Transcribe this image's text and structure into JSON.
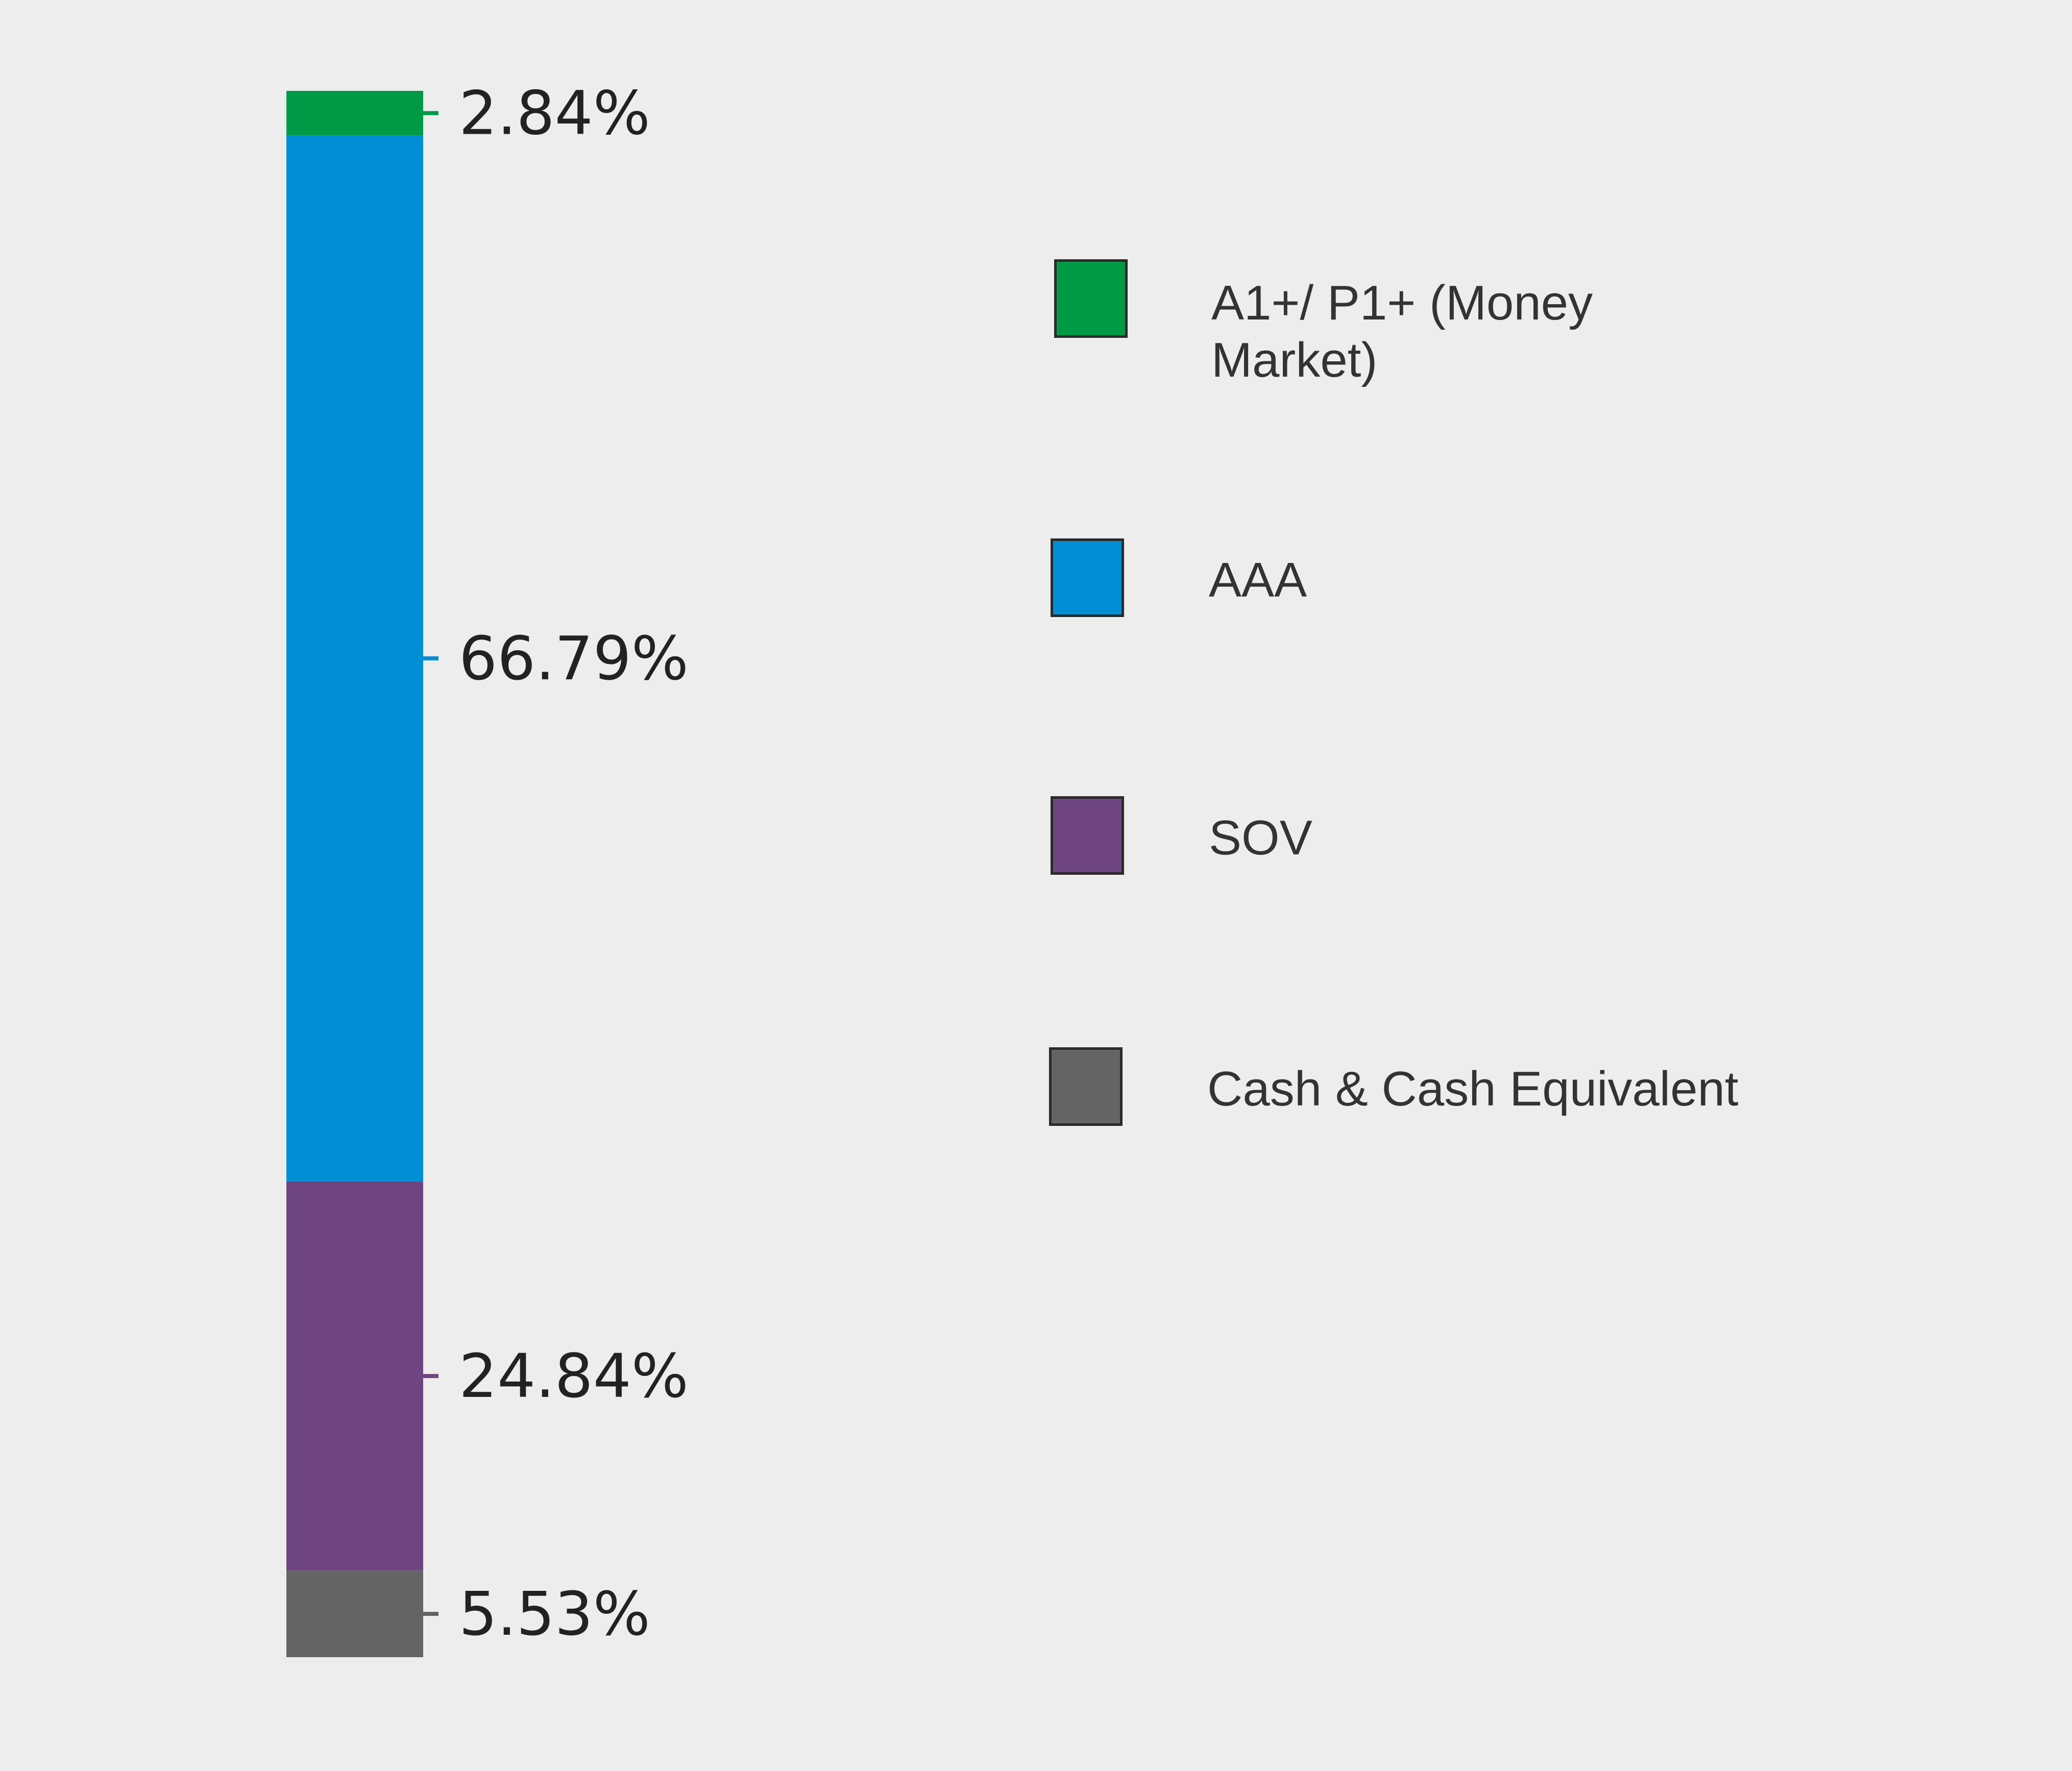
{
  "chart_data": {
    "type": "bar",
    "orientation": "stacked-vertical",
    "categories": [
      "A1+/ P1+ (Money Market)",
      "AAA",
      "SOV",
      "Cash & Cash Equivalent"
    ],
    "values": [
      2.84,
      66.79,
      24.84,
      5.53
    ],
    "value_labels": [
      "2.84%",
      "66.79%",
      "24.84%",
      "5.53%"
    ],
    "colors": [
      "#009a47",
      "#008ed5",
      "#6f4581",
      "#646464"
    ],
    "stack_order": "top-to-bottom",
    "legend_position": "right",
    "grid": false
  },
  "legend": {
    "items": [
      {
        "label": "A1+/ P1+ (Money Market)",
        "color": "#009a47"
      },
      {
        "label": "AAA",
        "color": "#008ed5"
      },
      {
        "label": "SOV",
        "color": "#6f4581"
      },
      {
        "label": "Cash & Cash Equivalent",
        "color": "#646464"
      }
    ]
  }
}
